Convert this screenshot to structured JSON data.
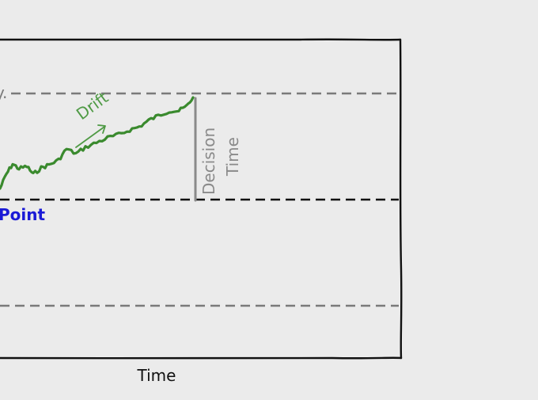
{
  "diagram": {
    "x_axis_label": "Time",
    "upper_boundary_label_fragment": "y.",
    "start_point_label_fragment": "Point",
    "drift_label": "Drift",
    "decision_time_label_line1": "Decision",
    "decision_time_label_line2": "Time"
  },
  "colors": {
    "background": "#ebebeb",
    "frame": "#111111",
    "boundary_dashed": "#7a7a7a",
    "start_line_dashed": "#111111",
    "path": "#3a8a2e",
    "drift_label": "#4f9a45",
    "start_label": "#1a1ad6",
    "decision_time": "#8a8a8a"
  },
  "icons": {
    "drift_arrow": "arrow-up-right-icon"
  }
}
